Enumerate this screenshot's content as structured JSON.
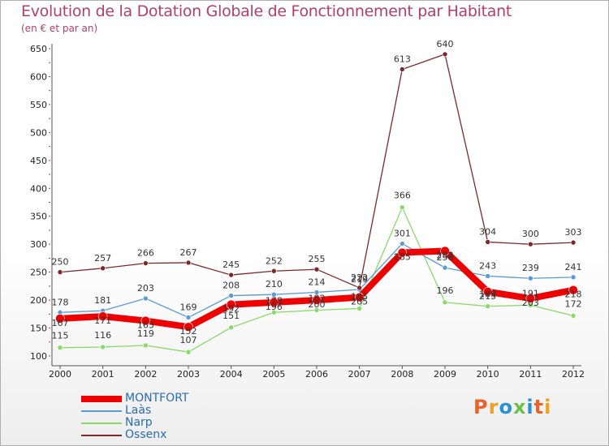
{
  "title": "Evolution de la Dotation Globale de Fonctionnement par Habitant",
  "subtitle": "(en € et par an)",
  "logo": "Proxiti",
  "chart_data": {
    "type": "line",
    "title": "Evolution de la Dotation Globale de Fonctionnement par Habitant",
    "ylabel": "(en € et par an)",
    "xlabel": "",
    "ylim": [
      100,
      650
    ],
    "yticks": [
      100,
      150,
      200,
      250,
      300,
      350,
      400,
      450,
      500,
      550,
      600,
      650
    ],
    "categories": [
      "2000",
      "2001",
      "2002",
      "2003",
      "2004",
      "2005",
      "2006",
      "2007",
      "2008",
      "2009",
      "2010",
      "2011",
      "2012"
    ],
    "grid": false,
    "legend": "bottom-left",
    "series": [
      {
        "name": "MONTFORT",
        "color": "#ee0000",
        "values": [
          167,
          171,
          163,
          152,
          192,
          196,
          200,
          205,
          285,
          288,
          215,
          203,
          218
        ]
      },
      {
        "name": "Laàs",
        "color": "#5b9bd5",
        "values": [
          178,
          181,
          203,
          169,
          208,
          210,
          214,
          219,
          301,
          258,
          243,
          239,
          241
        ]
      },
      {
        "name": "Narp",
        "color": "#8bd96a",
        "values": [
          115,
          116,
          119,
          107,
          151,
          178,
          182,
          185,
          366,
          196,
          189,
          191,
          172
        ]
      },
      {
        "name": "Ossenx",
        "color": "#7a2a2a",
        "values": [
          250,
          257,
          266,
          267,
          245,
          252,
          255,
          222,
          613,
          640,
          304,
          300,
          303
        ]
      }
    ]
  }
}
